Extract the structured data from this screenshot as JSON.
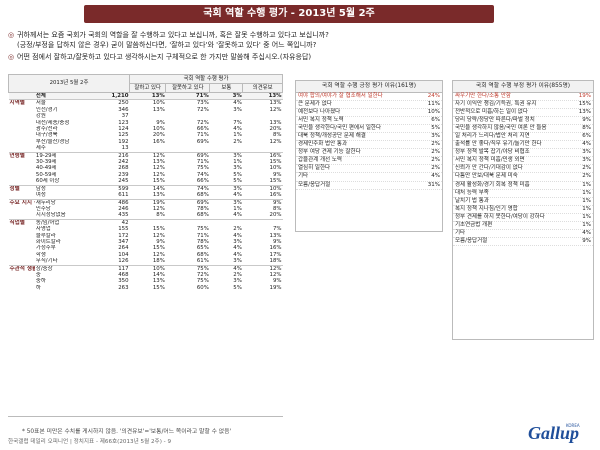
{
  "title": "국회 역할 수행 평가 - 2013년 5월 2주",
  "questions": {
    "q1": "귀하께서는 요즘 국회가 국회의 역할을 잘 수행하고 있다고 보십니까, 혹은 잘못 수행하고 있다고 보십니까?",
    "q1b": "(긍정/부정을 답하지 않은 경우) 굳이 말씀하신다면, '잘하고 있다'와 '잘못하고 있다' 중 어느 쪽입니까?",
    "q2": "어떤 점에서 잘하고/잘못하고 있다고 생각하시는지 구체적으로 한 가지만 말씀해 주십시오.(자유응답)"
  },
  "main_table": {
    "header_group": "국회 역할 수행 평가",
    "corner": "2013년 5월 2주",
    "col_base": "표본수",
    "col_good": "잘하고 있다",
    "col_bad": "잘못하고 있다",
    "col_mid": "보통",
    "col_dk": "의견유보",
    "total": {
      "label": "전체",
      "n": "1,210",
      "good": "13%",
      "bad": "71%",
      "mid": "3%",
      "dk": "13%"
    },
    "groups": [
      {
        "name": "지역별",
        "rows": [
          {
            "l": "서울",
            "n": "250",
            "g": "10%",
            "b": "73%",
            "m": "4%",
            "d": "13%"
          },
          {
            "l": "인천/경기",
            "n": "346",
            "g": "13%",
            "b": "72%",
            "m": "3%",
            "d": "12%"
          },
          {
            "l": "강원",
            "n": "37",
            "g": "",
            "b": "",
            "m": "",
            "d": ""
          },
          {
            "l": "대전/세종/충청",
            "n": "123",
            "g": "9%",
            "b": "72%",
            "m": "7%",
            "d": "13%"
          },
          {
            "l": "광주/전라",
            "n": "124",
            "g": "10%",
            "b": "66%",
            "m": "4%",
            "d": "20%"
          },
          {
            "l": "대구/경북",
            "n": "125",
            "g": "20%",
            "b": "71%",
            "m": "1%",
            "d": "8%"
          },
          {
            "l": "부산/울산/경남",
            "n": "192",
            "g": "16%",
            "b": "69%",
            "m": "2%",
            "d": "12%"
          },
          {
            "l": "제주",
            "n": "13",
            "g": "",
            "b": "",
            "m": "",
            "d": ""
          }
        ]
      },
      {
        "name": "연령별",
        "rows": [
          {
            "l": "19-29세",
            "n": "216",
            "g": "12%",
            "b": "69%",
            "m": "3%",
            "d": "16%"
          },
          {
            "l": "30-39세",
            "n": "242",
            "g": "13%",
            "b": "71%",
            "m": "1%",
            "d": "15%"
          },
          {
            "l": "40-49세",
            "n": "268",
            "g": "12%",
            "b": "75%",
            "m": "3%",
            "d": "10%"
          },
          {
            "l": "50-59세",
            "n": "239",
            "g": "12%",
            "b": "74%",
            "m": "5%",
            "d": "9%"
          },
          {
            "l": "60세 이상",
            "n": "245",
            "g": "15%",
            "b": "66%",
            "m": "5%",
            "d": "15%"
          }
        ]
      },
      {
        "name": "성별",
        "rows": [
          {
            "l": "남성",
            "n": "599",
            "g": "14%",
            "b": "74%",
            "m": "3%",
            "d": "10%"
          },
          {
            "l": "여성",
            "n": "611",
            "g": "13%",
            "b": "68%",
            "m": "4%",
            "d": "16%"
          }
        ]
      },
      {
        "name": "주요 지지 정당별",
        "rows": [
          {
            "l": "새누리당",
            "n": "486",
            "g": "19%",
            "b": "69%",
            "m": "3%",
            "d": "9%"
          },
          {
            "l": "민주당",
            "n": "246",
            "g": "12%",
            "b": "78%",
            "m": "1%",
            "d": "8%"
          },
          {
            "l": "지지정당없음",
            "n": "435",
            "g": "8%",
            "b": "68%",
            "m": "4%",
            "d": "20%"
          }
        ]
      },
      {
        "name": "직업별",
        "rows": [
          {
            "l": "농/임/어업",
            "n": "42",
            "g": "",
            "b": "",
            "m": "",
            "d": ""
          },
          {
            "l": "자영업",
            "n": "155",
            "g": "15%",
            "b": "75%",
            "m": "2%",
            "d": "7%"
          },
          {
            "l": "블루칼라",
            "n": "172",
            "g": "12%",
            "b": "71%",
            "m": "4%",
            "d": "13%"
          },
          {
            "l": "화이트칼라",
            "n": "347",
            "g": "9%",
            "b": "78%",
            "m": "3%",
            "d": "9%"
          },
          {
            "l": "가정주부",
            "n": "264",
            "g": "15%",
            "b": "65%",
            "m": "4%",
            "d": "16%"
          },
          {
            "l": "학생",
            "n": "104",
            "g": "12%",
            "b": "68%",
            "m": "4%",
            "d": "17%"
          },
          {
            "l": "무직/기타",
            "n": "126",
            "g": "18%",
            "b": "61%",
            "m": "3%",
            "d": "18%"
          }
        ]
      },
      {
        "name": "주관적 생활수준별",
        "rows": [
          {
            "l": "상/중상",
            "n": "117",
            "g": "10%",
            "b": "75%",
            "m": "4%",
            "d": "12%"
          },
          {
            "l": "중",
            "n": "468",
            "g": "14%",
            "b": "72%",
            "m": "2%",
            "d": "12%"
          },
          {
            "l": "중하",
            "n": "350",
            "g": "13%",
            "b": "75%",
            "m": "3%",
            "d": "9%"
          },
          {
            "l": "하",
            "n": "263",
            "g": "15%",
            "b": "60%",
            "m": "5%",
            "d": "19%"
          }
        ]
      }
    ]
  },
  "positive": {
    "header": "국회 역할 수행 긍정 평가 이유(161명)",
    "rows": [
      {
        "t": "여야 합의/여야가 잘 협조해서 일한다",
        "v": "24%"
      },
      {
        "t": "큰 문제가 없다",
        "v": "11%"
      },
      {
        "t": "예전보다 나아졌다",
        "v": "10%"
      },
      {
        "t": "서민 복지 정책 노력",
        "v": "6%"
      },
      {
        "t": "국민을 생각한다/국민 편에서 일한다",
        "v": "5%"
      },
      {
        "t": "대북 정책/개성공단 문제 해결",
        "v": "3%"
      },
      {
        "t": "경제민주화 법안 통과",
        "v": "2%"
      },
      {
        "t": "정부 여당 견제 기능 잘한다",
        "v": "2%"
      },
      {
        "t": "갑을관계 개선 노력",
        "v": "2%"
      },
      {
        "t": "열심히 일한다",
        "v": "2%"
      },
      {
        "t": "기타",
        "v": "4%"
      },
      {
        "t": "모름/응답거절",
        "v": "31%"
      }
    ]
  },
  "negative": {
    "header": "국회 역할 수행 부정 평가 이유(855명)",
    "rows": [
      {
        "t": "싸우기만 한다/소통 안함",
        "v": "19%"
      },
      {
        "t": "자기 이익만 챙김/기득권, 특권 유지",
        "v": "15%"
      },
      {
        "t": "전반적으로 미흡/하는 일이 없다",
        "v": "13%"
      },
      {
        "t": "당리 당략/정당만 따른다/파벌 정치",
        "v": "9%"
      },
      {
        "t": "국민을 생각하지 않음/국민 여론 안 들음",
        "v": "8%"
      },
      {
        "t": "일 처리가 느리다/법안 처리 지연",
        "v": "6%"
      },
      {
        "t": "출석률 안 좋다/직무 유기/놀기만 한다",
        "v": "4%"
      },
      {
        "t": "정부 정책 발목 잡기/야당 비협조",
        "v": "3%"
      },
      {
        "t": "서민 복지 정책 미흡/민생 외면",
        "v": "3%"
      },
      {
        "t": "신뢰가 안 간다/기대감이 없다",
        "v": "2%"
      },
      {
        "t": "다툼만 안보/대북 문제 미숙",
        "v": "2%"
      },
      {
        "t": "경제 활성화/경기 회복 정책 미흡",
        "v": "1%"
      },
      {
        "t": "대처 능력 부족",
        "v": "1%"
      },
      {
        "t": "날치기 법 통과",
        "v": "1%"
      },
      {
        "t": "복지 정책 지나침/인기 영합",
        "v": "1%"
      },
      {
        "t": "정부 견제를 하지 못한다/여당이 강하다",
        "v": "1%"
      },
      {
        "t": "기초연금법 개편",
        "v": "1%"
      },
      {
        "t": "기타",
        "v": "4%"
      },
      {
        "t": "모름/응답거절",
        "v": "9%"
      }
    ]
  },
  "footnote": "* 50표본 미만은 수치를 게시하지 않음. '의견유보'='보통/어느 쪽이라고 말할 수 없음'",
  "source": "한국갤럽 데일리 오피니언 | 정치지표 - 제66호(2013년 5월 2주) - 9",
  "logo_text": "Gallup",
  "logo_korea": "KOREA"
}
